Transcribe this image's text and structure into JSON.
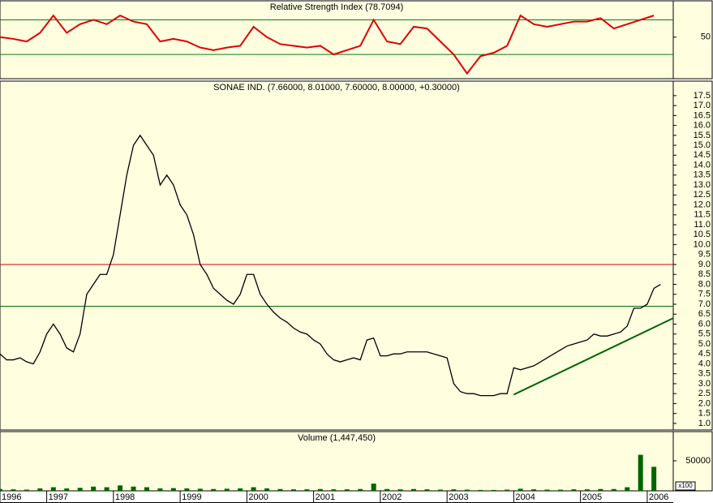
{
  "chart_data": [
    {
      "type": "line",
      "title": "Relative Strength Index (78.7094)",
      "x": [
        1996.3,
        1996.5,
        1996.7,
        1996.9,
        1997.1,
        1997.3,
        1997.5,
        1997.7,
        1997.9,
        1998.1,
        1998.3,
        1998.5,
        1998.7,
        1998.9,
        1999.1,
        1999.3,
        1999.5,
        1999.7,
        1999.9,
        2000.1,
        2000.3,
        2000.5,
        2000.7,
        2000.9,
        2001.1,
        2001.3,
        2001.5,
        2001.7,
        2001.9,
        2002.1,
        2002.3,
        2002.5,
        2002.7,
        2002.9,
        2003.1,
        2003.3,
        2003.5,
        2003.7,
        2003.9,
        2004.1,
        2004.3,
        2004.5,
        2004.7,
        2004.9,
        2005.1,
        2005.3,
        2005.5,
        2005.7,
        2005.9,
        2006.1
      ],
      "series": [
        {
          "color": "#e00000",
          "values": [
            50,
            48,
            45,
            55,
            75,
            55,
            65,
            70,
            65,
            75,
            68,
            65,
            45,
            48,
            45,
            38,
            35,
            38,
            40,
            62,
            50,
            42,
            40,
            38,
            40,
            30,
            35,
            40,
            70,
            45,
            42,
            62,
            60,
            45,
            30,
            8,
            28,
            32,
            40,
            75,
            65,
            62,
            65,
            68,
            68,
            72,
            60,
            65,
            70,
            75
          ]
        }
      ],
      "xlim": [
        1996.3,
        2006.39
      ],
      "ylim": [
        2,
        92
      ],
      "yticks": [
        50
      ],
      "hlines": [
        {
          "value": 70,
          "color": "#008000"
        },
        {
          "value": 30,
          "color": "#008000"
        }
      ]
    },
    {
      "type": "line",
      "title": "SONAE IND. (7.66000, 8.01000, 7.60000, 8.00000, +0.30000)",
      "x": [
        1996.3,
        1996.4,
        1996.5,
        1996.6,
        1996.7,
        1996.8,
        1996.9,
        1997.0,
        1997.1,
        1997.2,
        1997.3,
        1997.4,
        1997.5,
        1997.6,
        1997.7,
        1997.8,
        1997.9,
        1998.0,
        1998.1,
        1998.2,
        1998.3,
        1998.4,
        1998.5,
        1998.6,
        1998.7,
        1998.8,
        1998.9,
        1999.0,
        1999.1,
        1999.2,
        1999.3,
        1999.4,
        1999.5,
        1999.6,
        1999.7,
        1999.8,
        1999.9,
        2000.0,
        2000.1,
        2000.2,
        2000.3,
        2000.4,
        2000.5,
        2000.6,
        2000.7,
        2000.8,
        2000.9,
        2001.0,
        2001.1,
        2001.2,
        2001.3,
        2001.4,
        2001.5,
        2001.6,
        2001.7,
        2001.8,
        2001.9,
        2002.0,
        2002.1,
        2002.2,
        2002.3,
        2002.4,
        2002.5,
        2002.6,
        2002.7,
        2002.8,
        2002.9,
        2003.0,
        2003.1,
        2003.2,
        2003.3,
        2003.4,
        2003.5,
        2003.6,
        2003.7,
        2003.8,
        2003.9,
        2004.0,
        2004.1,
        2004.2,
        2004.3,
        2004.4,
        2004.5,
        2004.6,
        2004.7,
        2004.8,
        2004.9,
        2005.0,
        2005.1,
        2005.2,
        2005.3,
        2005.4,
        2005.5,
        2005.6,
        2005.7,
        2005.8,
        2005.9,
        2006.0,
        2006.1,
        2006.2
      ],
      "series": [
        {
          "color": "#000000",
          "values": [
            4.5,
            4.2,
            4.2,
            4.3,
            4.1,
            4.0,
            4.6,
            5.5,
            6.0,
            5.5,
            4.8,
            4.6,
            5.5,
            7.5,
            8.0,
            8.5,
            8.5,
            9.5,
            11.5,
            13.5,
            15.0,
            15.5,
            15.0,
            14.5,
            13.0,
            13.5,
            13.0,
            12.0,
            11.5,
            10.5,
            9.0,
            8.5,
            7.8,
            7.5,
            7.2,
            7.0,
            7.5,
            8.5,
            8.5,
            7.5,
            7.0,
            6.6,
            6.3,
            6.1,
            5.8,
            5.6,
            5.5,
            5.2,
            5.0,
            4.5,
            4.2,
            4.1,
            4.2,
            4.3,
            4.2,
            5.2,
            5.3,
            4.4,
            4.4,
            4.5,
            4.5,
            4.6,
            4.6,
            4.6,
            4.6,
            4.5,
            4.4,
            4.3,
            3.0,
            2.6,
            2.5,
            2.5,
            2.4,
            2.4,
            2.4,
            2.5,
            2.5,
            3.8,
            3.7,
            3.8,
            3.9,
            4.1,
            4.3,
            4.5,
            4.7,
            4.9,
            5.0,
            5.1,
            5.2,
            5.5,
            5.4,
            5.4,
            5.5,
            5.6,
            5.9,
            6.8,
            6.8,
            7.0,
            7.8,
            8.0
          ]
        }
      ],
      "xlim": [
        1996.3,
        2006.39
      ],
      "ylim": [
        0.67,
        18.23
      ],
      "yticks": [
        {
          "value": 1,
          "label": "1.0"
        },
        {
          "value": 1.5,
          "label": "1.5"
        },
        {
          "value": 2,
          "label": "2.0"
        },
        {
          "value": 2.5,
          "label": "2.5"
        },
        {
          "value": 3,
          "label": "3.0"
        },
        {
          "value": 3.5,
          "label": "3.5"
        },
        {
          "value": 4,
          "label": "4.0"
        },
        {
          "value": 4.5,
          "label": "4.5"
        },
        {
          "value": 5,
          "label": "5.0"
        },
        {
          "value": 5.5,
          "label": "5.5"
        },
        {
          "value": 6,
          "label": "6.0"
        },
        {
          "value": 6.5,
          "label": "6.5"
        },
        {
          "value": 7,
          "label": "7.0"
        },
        {
          "value": 7.5,
          "label": "7.5"
        },
        {
          "value": 8,
          "label": "8.0"
        },
        {
          "value": 8.5,
          "label": "8.5"
        },
        {
          "value": 9,
          "label": "9.0"
        },
        {
          "value": 9.5,
          "label": "9.5"
        },
        {
          "value": 10,
          "label": "10.0"
        },
        {
          "value": 10.5,
          "label": "10.5"
        },
        {
          "value": 11,
          "label": "11.0"
        },
        {
          "value": 11.5,
          "label": "11.5"
        },
        {
          "value": 12,
          "label": "12.0"
        },
        {
          "value": 12.5,
          "label": "12.5"
        },
        {
          "value": 13,
          "label": "13.0"
        },
        {
          "value": 13.5,
          "label": "13.5"
        },
        {
          "value": 14,
          "label": "14.0"
        },
        {
          "value": 14.5,
          "label": "14.5"
        },
        {
          "value": 15,
          "label": "15.0"
        },
        {
          "value": 15.5,
          "label": "15.5"
        },
        {
          "value": 16,
          "label": "16.0"
        },
        {
          "value": 16.5,
          "label": "16.5"
        },
        {
          "value": 17,
          "label": "17.0"
        },
        {
          "value": 17.5,
          "label": "17.5"
        }
      ],
      "hlines": [
        {
          "value": 9.0,
          "color": "#d00000"
        },
        {
          "value": 6.9,
          "color": "#007000"
        }
      ],
      "trendline": {
        "x": [
          2004.0,
          2006.39
        ],
        "y": [
          2.45,
          6.3
        ],
        "color": "#006400"
      }
    },
    {
      "type": "bar",
      "title": "Volume (1,447,450)",
      "unit_label": "x100",
      "x": [
        1996.3,
        1996.5,
        1996.7,
        1996.9,
        1997.1,
        1997.3,
        1997.5,
        1997.7,
        1997.9,
        1998.1,
        1998.3,
        1998.5,
        1998.7,
        1998.9,
        1999.1,
        1999.3,
        1999.5,
        1999.7,
        1999.9,
        2000.1,
        2000.3,
        2000.5,
        2000.7,
        2000.9,
        2001.1,
        2001.3,
        2001.5,
        2001.7,
        2001.9,
        2002.1,
        2002.3,
        2002.5,
        2002.7,
        2002.9,
        2003.1,
        2003.3,
        2003.5,
        2003.7,
        2003.9,
        2004.1,
        2004.3,
        2004.5,
        2004.7,
        2004.9,
        2005.1,
        2005.3,
        2005.5,
        2005.7,
        2005.9,
        2006.1
      ],
      "series": [
        {
          "color": "#006400",
          "values": [
            3000,
            2500,
            2000,
            4000,
            6000,
            4000,
            5000,
            7000,
            6000,
            9000,
            7000,
            6000,
            4000,
            4500,
            4000,
            3500,
            3000,
            3500,
            4000,
            6000,
            4000,
            3000,
            2500,
            2500,
            3000,
            2500,
            2500,
            3000,
            12000,
            3000,
            2500,
            3000,
            2500,
            2000,
            2500,
            2000,
            1500,
            1500,
            2000,
            3500,
            2500,
            2000,
            2000,
            2500,
            2500,
            3000,
            3000,
            6000,
            60000,
            40000
          ]
        }
      ],
      "xlim": [
        1996.3,
        2006.39
      ],
      "ylim": [
        0,
        98650
      ],
      "yticks": [
        50000
      ],
      "xticks": [
        {
          "value": 1996.3,
          "label": "1996"
        },
        1997,
        1998,
        1999,
        2000,
        2001,
        2002,
        2003,
        2004,
        2005,
        2006
      ]
    }
  ]
}
